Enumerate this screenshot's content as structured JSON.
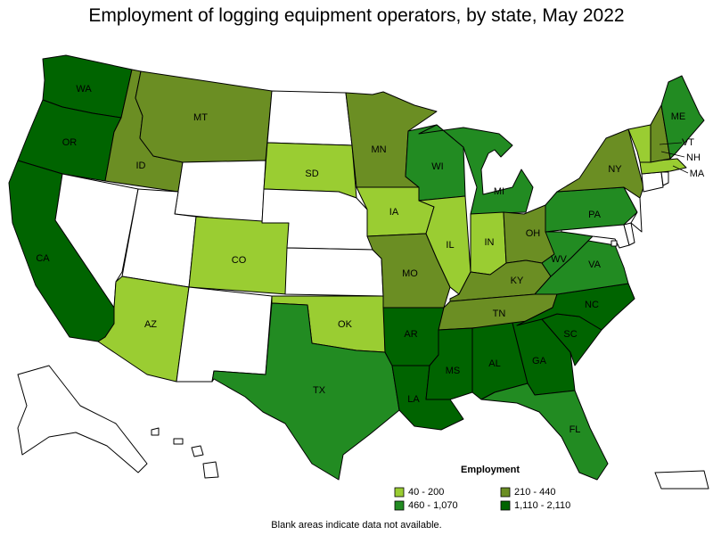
{
  "title": "Employment of logging equipment operators, by state, May 2022",
  "legend": {
    "title": "Employment",
    "items": [
      {
        "label": "40 - 200",
        "color": "#9acd32"
      },
      {
        "label": "210 - 440",
        "color": "#6b8e23"
      },
      {
        "label": "460 - 1,070",
        "color": "#228b22"
      },
      {
        "label": "1,110 - 2,110",
        "color": "#006400"
      }
    ]
  },
  "note": "Blank areas indicate data not available.",
  "colors": {
    "no_data": "#ffffff",
    "border": "#000000"
  },
  "states": [
    {
      "abbr": "WA",
      "bin": 3
    },
    {
      "abbr": "OR",
      "bin": 3
    },
    {
      "abbr": "CA",
      "bin": 3
    },
    {
      "abbr": "ID",
      "bin": 1
    },
    {
      "abbr": "MT",
      "bin": 1
    },
    {
      "abbr": "MN",
      "bin": 1
    },
    {
      "abbr": "MO",
      "bin": 1
    },
    {
      "abbr": "OH",
      "bin": 1
    },
    {
      "abbr": "KY",
      "bin": 1
    },
    {
      "abbr": "TN",
      "bin": 1
    },
    {
      "abbr": "NY",
      "bin": 1
    },
    {
      "abbr": "SD",
      "bin": 0
    },
    {
      "abbr": "CO",
      "bin": 0
    },
    {
      "abbr": "AZ",
      "bin": 0
    },
    {
      "abbr": "OK",
      "bin": 0
    },
    {
      "abbr": "IA",
      "bin": 0
    },
    {
      "abbr": "IL",
      "bin": 0
    },
    {
      "abbr": "IN",
      "bin": 0
    },
    {
      "abbr": "VT",
      "bin": 0
    },
    {
      "abbr": "MA",
      "bin": 0
    },
    {
      "abbr": "TX",
      "bin": 2
    },
    {
      "abbr": "WI",
      "bin": 2
    },
    {
      "abbr": "MI",
      "bin": 2
    },
    {
      "abbr": "PA",
      "bin": 2
    },
    {
      "abbr": "WV",
      "bin": 2
    },
    {
      "abbr": "VA",
      "bin": 2
    },
    {
      "abbr": "FL",
      "bin": 2
    },
    {
      "abbr": "ME",
      "bin": 2
    },
    {
      "abbr": "AR",
      "bin": 3
    },
    {
      "abbr": "LA",
      "bin": 3
    },
    {
      "abbr": "MS",
      "bin": 3
    },
    {
      "abbr": "AL",
      "bin": 3
    },
    {
      "abbr": "GA",
      "bin": 3
    },
    {
      "abbr": "SC",
      "bin": 3
    },
    {
      "abbr": "NC",
      "bin": 3
    },
    {
      "abbr": "NH",
      "bin": 1
    },
    {
      "abbr": "NV",
      "bin": null
    },
    {
      "abbr": "UT",
      "bin": null
    },
    {
      "abbr": "WY",
      "bin": null
    },
    {
      "abbr": "NM",
      "bin": null
    },
    {
      "abbr": "ND",
      "bin": null
    },
    {
      "abbr": "NE",
      "bin": null
    },
    {
      "abbr": "KS",
      "bin": null
    },
    {
      "abbr": "AK",
      "bin": null
    },
    {
      "abbr": "HI",
      "bin": null
    },
    {
      "abbr": "PR",
      "bin": null
    },
    {
      "abbr": "CT",
      "bin": null
    },
    {
      "abbr": "RI",
      "bin": null
    },
    {
      "abbr": "NJ",
      "bin": null
    },
    {
      "abbr": "DE",
      "bin": null
    },
    {
      "abbr": "MD",
      "bin": null
    },
    {
      "abbr": "DC",
      "bin": null
    }
  ]
}
